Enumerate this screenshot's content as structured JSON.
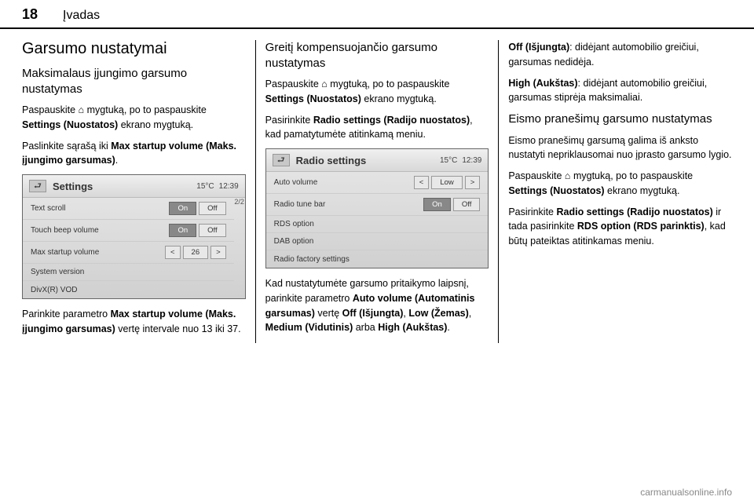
{
  "header": {
    "page_number": "18",
    "section": "Įvadas"
  },
  "col1": {
    "h2": "Garsumo nustatymai",
    "h3": "Maksimalaus įjungimo garsumo nustatymas",
    "p1a": "Paspauskite ",
    "p1_icon": "⌂",
    "p1b": " mygtuką, po to paspauskite ",
    "p1_bold": "Settings (Nuostatos)",
    "p1c": " ekrano mygtuką.",
    "p2a": "Paslinkite sąrašą iki ",
    "p2_bold": "Max startup volume (Maks. įjungimo garsumas)",
    "p2b": ".",
    "shot": {
      "title": "Settings",
      "temp": "15°C",
      "time": "12:39",
      "rows": [
        {
          "label": "Text scroll",
          "on": "On",
          "off": "Off",
          "active": "on"
        },
        {
          "label": "Touch beep volume",
          "on": "On",
          "off": "Off",
          "active": "on"
        },
        {
          "label": "Max startup volume",
          "stepper": true,
          "val": "26"
        },
        {
          "label": "System version"
        },
        {
          "label": "DivX(R) VOD"
        }
      ],
      "scroll": "2/2"
    },
    "p3a": "Parinkite parametro ",
    "p3_bold": "Max startup volume (Maks. įjungimo garsumas)",
    "p3b": " vertę intervale nuo 13 iki 37."
  },
  "col2": {
    "h3": "Greitį kompensuojančio garsumo nustatymas",
    "p1a": "Paspauskite ",
    "p1_icon": "⌂",
    "p1b": " mygtuką, po to paspauskite ",
    "p1_bold": "Settings (Nuostatos)",
    "p1c": " ekrano mygtuką.",
    "p2a": "Pasirinkite ",
    "p2_bold": "Radio settings (Radijo nuostatos)",
    "p2b": ", kad pamatytumėte atitinkamą meniu.",
    "shot": {
      "title": "Radio settings",
      "temp": "15°C",
      "time": "12:39",
      "rows": [
        {
          "label": "Auto volume",
          "stepper": true,
          "val": "Low"
        },
        {
          "label": "Radio tune bar",
          "on": "On",
          "off": "Off",
          "active": "on"
        },
        {
          "label": "RDS option"
        },
        {
          "label": "DAB option"
        },
        {
          "label": "Radio factory settings"
        }
      ]
    },
    "p3a": "Kad nustatytumėte garsumo pritaikymo laipsnį, parinkite parametro ",
    "p3_bold1": "Auto volume (Automatinis garsumas)",
    "p3b": " vertę ",
    "p3_bold2": "Off (Išjungta)",
    "p3c": ", ",
    "p3_bold3": "Low (Žemas)",
    "p3d": ", ",
    "p3_bold4": "Medium (Vidutinis)",
    "p3e": " arba ",
    "p3_bold5": "High (Aukštas)",
    "p3f": "."
  },
  "col3": {
    "p1_bold": "Off (Išjungta)",
    "p1": ": didėjant automobilio greičiui, garsumas nedidėja.",
    "p2_bold": "High (Aukštas)",
    "p2": ": didėjant automobilio greičiui, garsumas stiprėja maksimaliai.",
    "h3": "Eismo pranešimų garsumo nustatymas",
    "p3": "Eismo pranešimų garsumą galima iš anksto nustatyti nepriklausomai nuo įprasto garsumo lygio.",
    "p4a": "Paspauskite ",
    "p4_icon": "⌂",
    "p4b": " mygtuką, po to paspauskite ",
    "p4_bold": "Settings (Nuostatos)",
    "p4c": " ekrano mygtuką.",
    "p5a": "Pasirinkite ",
    "p5_bold1": "Radio settings (Radijo nuostatos)",
    "p5b": " ir tada pasirinkite ",
    "p5_bold2": "RDS option (RDS parinktis)",
    "p5c": ", kad būtų pateiktas atitinkamas meniu."
  },
  "footer": "carmanualsonline.info"
}
